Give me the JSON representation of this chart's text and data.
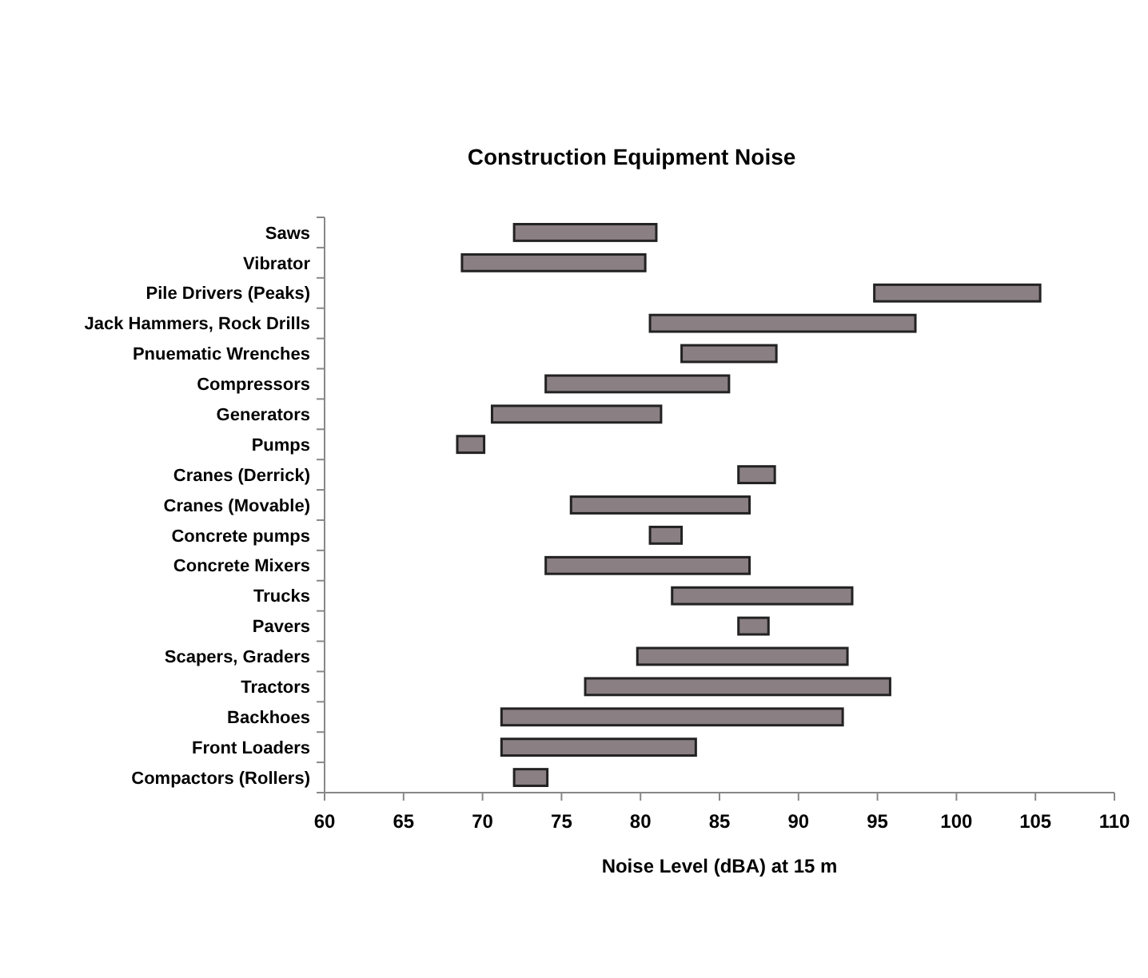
{
  "chart_data": {
    "type": "bar",
    "orientation": "horizontal",
    "title": "Construction Equipment Noise",
    "xlabel": "Noise Level (dBA) at 15 m",
    "categories": [
      "Saws",
      "Vibrator",
      "Pile Drivers (Peaks)",
      "Jack Hammers, Rock Drills",
      "Pnuematic Wrenches",
      "Compressors",
      "Generators",
      "Pumps",
      "Cranes (Derrick)",
      "Cranes (Movable)",
      "Concrete pumps",
      "Concrete Mixers",
      "Trucks",
      "Pavers",
      "Scapers, Graders",
      "Tractors",
      "Backhoes",
      "Front Loaders",
      "Compactors (Rollers)"
    ],
    "base": [
      72.0,
      68.7,
      94.8,
      80.6,
      82.6,
      74.0,
      70.6,
      68.4,
      86.2,
      75.6,
      80.6,
      74.0,
      82.0,
      86.2,
      79.8,
      76.5,
      71.2,
      71.2,
      72.0
    ],
    "values": [
      9.0,
      11.6,
      10.5,
      16.8,
      6.0,
      11.6,
      10.7,
      1.7,
      2.3,
      11.3,
      2.0,
      12.9,
      11.4,
      1.9,
      13.3,
      19.3,
      21.6,
      12.3,
      2.1
    ],
    "color": "#8a7f82",
    "xlim": [
      60,
      110
    ],
    "xticks": [
      60,
      65,
      70,
      75,
      80,
      85,
      90,
      95,
      100,
      105,
      110
    ],
    "grid": false
  }
}
